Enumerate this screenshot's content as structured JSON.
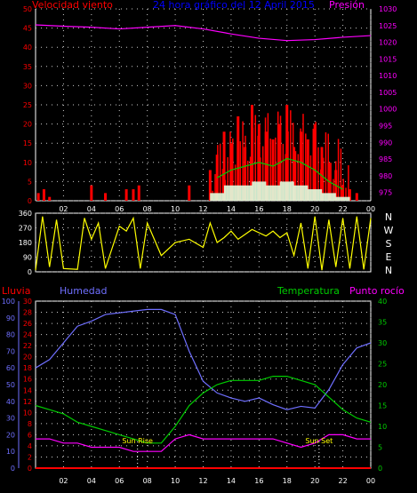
{
  "header": {
    "wind_title": "Velocidad viento",
    "graph_title": "24 hora gráfico del 12 April 2015",
    "pressure_title": "Presión"
  },
  "labels": {
    "rain": "Lluvia",
    "humidity": "Humedad",
    "temperature": "Temperatura",
    "dewpoint": "Punto rocío",
    "sun_rise": "Sun Rise",
    "sun_set": "Sun Set"
  },
  "colors": {
    "wind": "#ff0000",
    "gust": "#00cc00",
    "avg": "#e0ffe0",
    "pressure": "#ff00ff",
    "direction": "#ffff00",
    "humidity": "#6f6fff",
    "temperature": "#00cc00",
    "dewpoint": "#ff00ff",
    "rain": "#ff0000",
    "grid": "#cccccc"
  },
  "chart_data": [
    {
      "type": "area",
      "name": "wind-pressure",
      "x_ticks": [
        "02",
        "04",
        "06",
        "08",
        "10",
        "12",
        "14",
        "16",
        "18",
        "20",
        "22",
        "00"
      ],
      "y_left_ticks": [
        "0",
        "5",
        "10",
        "15",
        "20",
        "25",
        "30",
        "35",
        "40",
        "45",
        "50"
      ],
      "y_right_ticks": [
        "975",
        "980",
        "985",
        "990",
        "995",
        "1000",
        "1005",
        "1010",
        "1015",
        "1020",
        "1025",
        "1030"
      ],
      "y_left_range": [
        0,
        50
      ],
      "y_right_range": [
        972.5,
        1030
      ],
      "x_range": [
        0,
        24
      ],
      "pressure": [
        [
          0,
          1025.2
        ],
        [
          2,
          1024.8
        ],
        [
          4,
          1024.5
        ],
        [
          6,
          1024.0
        ],
        [
          8,
          1024.5
        ],
        [
          10,
          1025.0
        ],
        [
          12,
          1024.0
        ],
        [
          14,
          1022.5
        ],
        [
          16,
          1021.2
        ],
        [
          18,
          1020.5
        ],
        [
          20,
          1020.8
        ],
        [
          22,
          1021.5
        ],
        [
          24,
          1022.0
        ]
      ],
      "wind_gust_peaks": [
        [
          0.2,
          2
        ],
        [
          0.6,
          3
        ],
        [
          1,
          1
        ],
        [
          4,
          4
        ],
        [
          5,
          2
        ],
        [
          6.5,
          3
        ],
        [
          7,
          3
        ],
        [
          7.4,
          4
        ],
        [
          11,
          4
        ],
        [
          12.5,
          8
        ],
        [
          13,
          12
        ],
        [
          13.5,
          18
        ],
        [
          14,
          15
        ],
        [
          14.5,
          22
        ],
        [
          15,
          14
        ],
        [
          15.5,
          25
        ],
        [
          16,
          20
        ],
        [
          16.5,
          18
        ],
        [
          17,
          16
        ],
        [
          17.5,
          20
        ],
        [
          18,
          25
        ],
        [
          18.5,
          14
        ],
        [
          19,
          18
        ],
        [
          19.5,
          16
        ],
        [
          20,
          20
        ],
        [
          20.5,
          14
        ],
        [
          21,
          10
        ],
        [
          21.5,
          8
        ],
        [
          22,
          4
        ],
        [
          22.5,
          3
        ],
        [
          23,
          2
        ]
      ],
      "wind_gust_mids": [
        [
          13,
          6
        ],
        [
          14,
          8
        ],
        [
          15,
          9
        ],
        [
          16,
          10
        ],
        [
          17,
          9
        ],
        [
          18,
          11
        ],
        [
          19,
          10
        ],
        [
          20,
          8
        ],
        [
          21,
          5
        ],
        [
          22,
          3
        ]
      ],
      "wind_avg": [
        [
          13,
          2
        ],
        [
          14,
          4
        ],
        [
          15,
          4
        ],
        [
          16,
          5
        ],
        [
          17,
          4
        ],
        [
          18,
          5
        ],
        [
          19,
          4
        ],
        [
          20,
          3
        ],
        [
          21,
          2
        ],
        [
          22,
          1
        ]
      ]
    },
    {
      "type": "line",
      "name": "wind-direction",
      "y_ticks": [
        "0",
        "90",
        "180",
        "270",
        "360"
      ],
      "y_range": [
        0,
        360
      ],
      "compass": [
        "N",
        "W",
        "S",
        "E",
        "N"
      ],
      "values": [
        [
          0,
          10
        ],
        [
          0.5,
          340
        ],
        [
          1,
          30
        ],
        [
          1.5,
          320
        ],
        [
          2,
          20
        ],
        [
          3,
          15
        ],
        [
          3.5,
          330
        ],
        [
          4,
          200
        ],
        [
          4.5,
          300
        ],
        [
          5,
          20
        ],
        [
          6,
          280
        ],
        [
          6.5,
          250
        ],
        [
          7,
          330
        ],
        [
          7.5,
          20
        ],
        [
          8,
          300
        ],
        [
          8.5,
          200
        ],
        [
          9,
          100
        ],
        [
          10,
          180
        ],
        [
          11,
          200
        ],
        [
          12,
          150
        ],
        [
          12.5,
          300
        ],
        [
          13,
          180
        ],
        [
          13.5,
          210
        ],
        [
          14,
          250
        ],
        [
          14.5,
          200
        ],
        [
          15,
          230
        ],
        [
          15.5,
          260
        ],
        [
          16,
          240
        ],
        [
          16.5,
          220
        ],
        [
          17,
          250
        ],
        [
          17.5,
          210
        ],
        [
          18,
          240
        ],
        [
          18.5,
          100
        ],
        [
          19,
          300
        ],
        [
          19.5,
          20
        ],
        [
          20,
          340
        ],
        [
          20.5,
          10
        ],
        [
          21,
          320
        ],
        [
          21.5,
          30
        ],
        [
          22,
          330
        ],
        [
          22.5,
          20
        ],
        [
          23,
          340
        ],
        [
          23.5,
          15
        ],
        [
          24,
          330
        ]
      ]
    },
    {
      "type": "line",
      "name": "humidity-temperature",
      "x_ticks": [
        "02",
        "04",
        "06",
        "08",
        "10",
        "12",
        "14",
        "16",
        "18",
        "20",
        "22",
        "00"
      ],
      "y_far_left_ticks": [
        "0",
        "10",
        "20",
        "30",
        "40",
        "50",
        "60",
        "70",
        "80",
        "90",
        "100"
      ],
      "y_left_ticks": [
        "0",
        "2",
        "4",
        "6",
        "8",
        "10",
        "12",
        "14",
        "16",
        "18",
        "20",
        "22",
        "24",
        "26",
        "28",
        "30"
      ],
      "y_right_ticks": [
        "0",
        "5",
        "10",
        "15",
        "20",
        "25",
        "30",
        "35",
        "40"
      ],
      "x_range": [
        0,
        24
      ],
      "humidity": [
        [
          0,
          60
        ],
        [
          1,
          65
        ],
        [
          2,
          75
        ],
        [
          3,
          85
        ],
        [
          4,
          88
        ],
        [
          5,
          92
        ],
        [
          6,
          93
        ],
        [
          7,
          94
        ],
        [
          8,
          95
        ],
        [
          9,
          95
        ],
        [
          10,
          92
        ],
        [
          11,
          70
        ],
        [
          12,
          52
        ],
        [
          13,
          45
        ],
        [
          14,
          42
        ],
        [
          15,
          40
        ],
        [
          16,
          42
        ],
        [
          17,
          38
        ],
        [
          18,
          35
        ],
        [
          19,
          37
        ],
        [
          20,
          36
        ],
        [
          21,
          47
        ],
        [
          22,
          62
        ],
        [
          23,
          72
        ],
        [
          24,
          75
        ]
      ],
      "temperature": [
        [
          0,
          15
        ],
        [
          1,
          14
        ],
        [
          2,
          13
        ],
        [
          3,
          11
        ],
        [
          4,
          10
        ],
        [
          5,
          9
        ],
        [
          6,
          8
        ],
        [
          7,
          7
        ],
        [
          8,
          6
        ],
        [
          9,
          6
        ],
        [
          10,
          10
        ],
        [
          11,
          15
        ],
        [
          12,
          18
        ],
        [
          13,
          20
        ],
        [
          14,
          21
        ],
        [
          15,
          21
        ],
        [
          16,
          21
        ],
        [
          17,
          22
        ],
        [
          18,
          22
        ],
        [
          19,
          21
        ],
        [
          20,
          20
        ],
        [
          21,
          17
        ],
        [
          22,
          14
        ],
        [
          23,
          12
        ],
        [
          24,
          11
        ]
      ],
      "dewpoint": [
        [
          0,
          7
        ],
        [
          1,
          7
        ],
        [
          2,
          6
        ],
        [
          3,
          6
        ],
        [
          4,
          5
        ],
        [
          5,
          5
        ],
        [
          6,
          5
        ],
        [
          7,
          4
        ],
        [
          8,
          4
        ],
        [
          9,
          4
        ],
        [
          10,
          7
        ],
        [
          11,
          8
        ],
        [
          12,
          7
        ],
        [
          13,
          7
        ],
        [
          14,
          7
        ],
        [
          15,
          7
        ],
        [
          16,
          7
        ],
        [
          17,
          7
        ],
        [
          18,
          6
        ],
        [
          19,
          5
        ],
        [
          20,
          6
        ],
        [
          21,
          8
        ],
        [
          22,
          8
        ],
        [
          23,
          7
        ],
        [
          24,
          7
        ]
      ],
      "rain": [
        [
          0,
          0
        ],
        [
          24,
          0
        ]
      ],
      "sun_rise_hour": 7.3,
      "sun_set_hour": 20.3
    }
  ]
}
